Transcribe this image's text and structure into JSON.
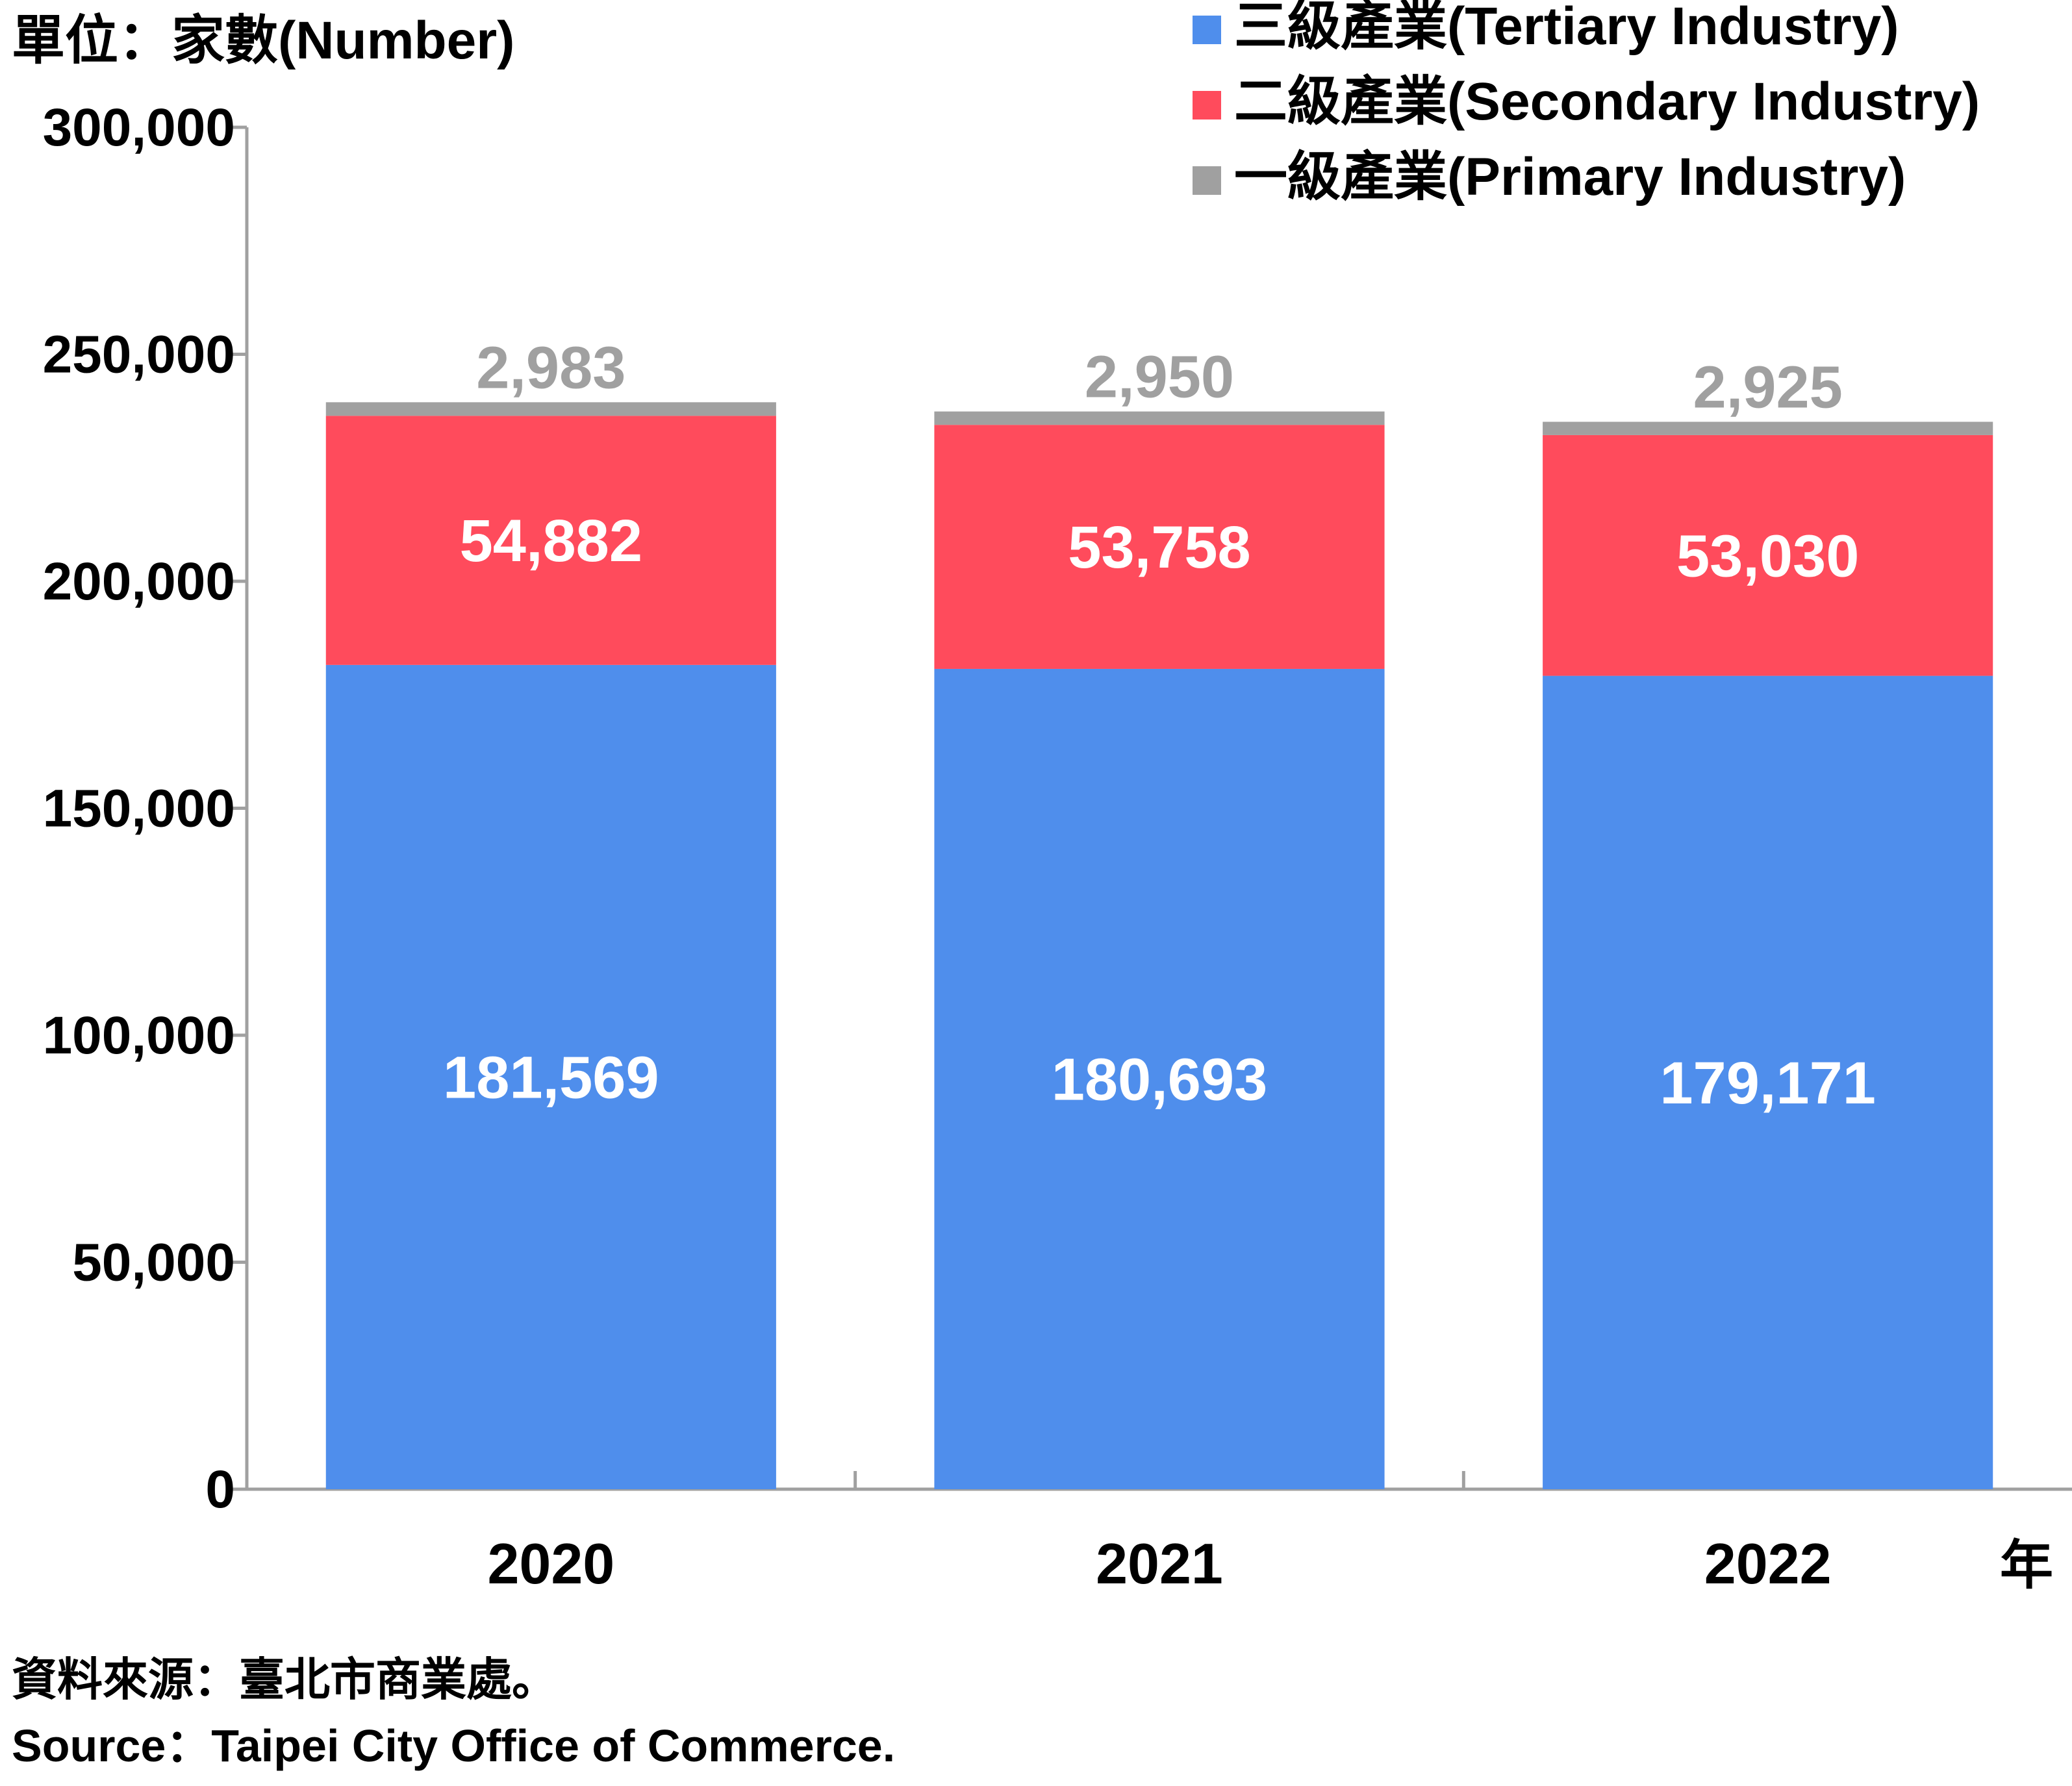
{
  "chart_data": {
    "type": "bar",
    "stacked": true,
    "unit_label": "單位：家數(Number)",
    "x_unit": "年",
    "categories": [
      "2020",
      "2021",
      "2022"
    ],
    "series": [
      {
        "name": "三級產業(Tertiary Industry)",
        "values": [
          181569,
          180693,
          179171
        ],
        "labels": [
          "181,569",
          "180,693",
          "179,171"
        ],
        "color": "#4f8eec",
        "label_color": "#ffffff"
      },
      {
        "name": "二級產業(Secondary Industry)",
        "values": [
          54882,
          53758,
          53030
        ],
        "labels": [
          "54,882",
          "53,758",
          "53,030"
        ],
        "color": "#ff4b5c",
        "label_color": "#ffffff"
      },
      {
        "name": "一級產業(Primary Industry)",
        "values": [
          2983,
          2950,
          2925
        ],
        "labels": [
          "2,983",
          "2,950",
          "2,925"
        ],
        "color": "#a0a0a0",
        "label_color": "#a0a0a0"
      }
    ],
    "ylim": [
      0,
      300000
    ],
    "yticks": [
      0,
      50000,
      100000,
      150000,
      200000,
      250000,
      300000
    ],
    "ytick_labels": [
      "0",
      "50,000",
      "100,000",
      "150,000",
      "200,000",
      "250,000",
      "300,000"
    ],
    "legend_position": "top-right",
    "grid": false
  },
  "source": {
    "zh": "資料來源：臺北市商業處。",
    "en": "Source：Taipei City Office of Commerce."
  }
}
